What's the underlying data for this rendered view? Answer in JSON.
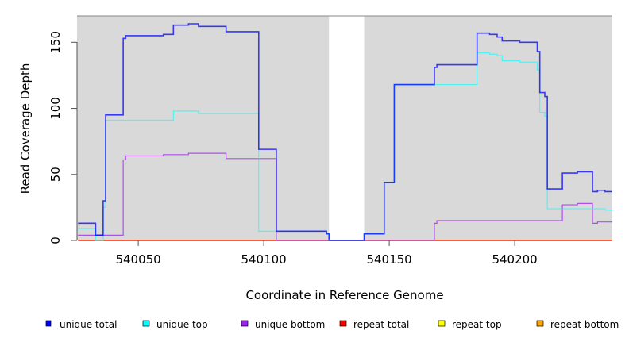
{
  "chart_data": {
    "type": "line",
    "step": true,
    "title": "",
    "xlabel": "Coordinate in Reference Genome",
    "ylabel": "Read Coverage Depth",
    "xlim": [
      540025.6,
      540238.9
    ],
    "ylim": [
      0,
      170
    ],
    "xticks": [
      540050,
      540100,
      540150,
      540200
    ],
    "xtick_labels": [
      "540050",
      "540100",
      "540150",
      "540200"
    ],
    "yticks": [
      0,
      50,
      100,
      150
    ],
    "ytick_labels": [
      "0",
      "50",
      "100",
      "150"
    ],
    "shaded_regions": [
      [
        540025.6,
        540126
      ],
      [
        540140,
        540238.9
      ]
    ],
    "shade_color": "#d9d9d9",
    "breakpoints": [
      540026,
      540033,
      540036,
      540037,
      540044,
      540045,
      540060,
      540064,
      540070,
      540074,
      540085,
      540098,
      540105,
      540125,
      540126,
      540140,
      540148,
      540152,
      540168,
      540169,
      540185,
      540190,
      540193,
      540195,
      540202,
      540209,
      540210,
      540212,
      540213,
      540219,
      540225,
      540231,
      540233,
      540236,
      540239
    ],
    "series": [
      {
        "name": "unique total",
        "color": "#0000ff",
        "values": [
          13,
          4,
          30,
          95,
          153,
          155,
          156,
          163,
          164,
          162,
          158,
          69,
          7,
          5,
          0,
          5,
          44,
          118,
          131,
          133,
          157,
          156,
          154,
          151,
          150,
          143,
          112,
          109,
          39,
          51,
          52,
          37,
          38,
          37
        ]
      },
      {
        "name": "unique top",
        "color": "#00ffff",
        "values": [
          9,
          0,
          25,
          91,
          91,
          91,
          91,
          98,
          98,
          96,
          96,
          7,
          7,
          5,
          0,
          5,
          44,
          118,
          118,
          118,
          142,
          141,
          140,
          136,
          135,
          129,
          97,
          94,
          24,
          24,
          24,
          24,
          24,
          23
        ]
      },
      {
        "name": "unique bottom",
        "color": "#a020f0",
        "values": [
          4,
          4,
          4,
          4,
          61,
          64,
          65,
          65,
          66,
          66,
          62,
          62,
          0,
          0,
          0,
          0,
          0,
          0,
          13,
          15,
          15,
          15,
          15,
          15,
          15,
          15,
          15,
          15,
          15,
          27,
          28,
          13,
          14,
          14
        ]
      },
      {
        "name": "repeat total",
        "color": "#ff0000",
        "values": [
          0,
          0,
          0,
          0,
          0,
          0,
          0,
          0,
          0,
          0,
          0,
          0,
          0,
          0,
          0,
          0,
          0,
          0,
          0,
          0,
          0,
          0,
          0,
          0,
          0,
          0,
          0,
          0,
          0,
          0,
          0,
          0,
          0,
          0
        ]
      },
      {
        "name": "repeat top",
        "color": "#ffff00",
        "values": [
          0,
          0,
          0,
          0,
          0,
          0,
          0,
          0,
          0,
          0,
          0,
          0,
          0,
          0,
          0,
          0,
          0,
          0,
          0,
          0,
          0,
          0,
          0,
          0,
          0,
          0,
          0,
          0,
          0,
          0,
          0,
          0,
          0,
          0
        ]
      },
      {
        "name": "repeat bottom",
        "color": "#ffa500",
        "values": [
          0,
          0,
          0,
          0,
          0,
          0,
          0,
          0,
          0,
          0,
          0,
          0,
          0,
          0,
          0,
          0,
          0,
          0,
          0,
          0,
          0,
          0,
          0,
          0,
          0,
          0,
          0,
          0,
          0,
          0,
          0,
          0,
          0,
          0
        ]
      }
    ],
    "legend": {
      "placement": "bottom",
      "entries": [
        "unique total",
        "unique top",
        "unique bottom",
        "repeat total",
        "repeat top",
        "repeat bottom"
      ]
    }
  }
}
